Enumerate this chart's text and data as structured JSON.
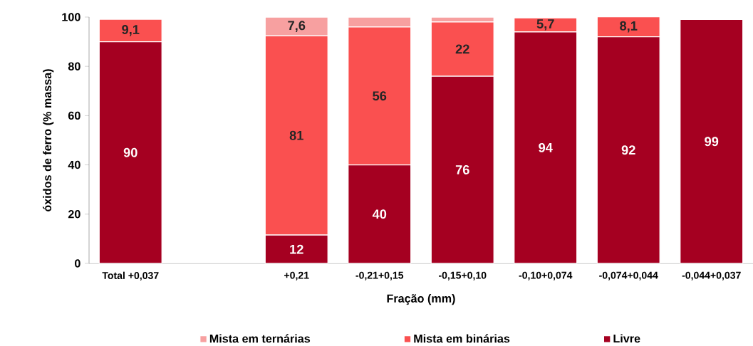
{
  "chart_data": {
    "type": "bar",
    "stacked": true,
    "xlabel": "Fração (mm)",
    "ylabel": "óxidos de ferro (% massa)",
    "categories": [
      "Total +0,037",
      null,
      "+0,21",
      "-0,21+0,15",
      "-0,15+0,10",
      "-0,10+0,074",
      "-0,074+0,044",
      "-0,044+0,037"
    ],
    "series": [
      {
        "name": "Livre",
        "color": "#a50021",
        "values": [
          90,
          null,
          11.5,
          40,
          76,
          94,
          92,
          99
        ],
        "value_labels": [
          "90",
          null,
          "12",
          "40",
          "76",
          "94",
          "92",
          "99"
        ]
      },
      {
        "name": "Mista em binárias",
        "color": "#fa5050",
        "values": [
          9.1,
          null,
          80.9,
          56,
          22,
          5.7,
          8.1,
          0
        ],
        "value_labels": [
          "9,1",
          null,
          "81",
          "56",
          "22",
          "5,7",
          "8,1",
          null
        ]
      },
      {
        "name": "Mista em ternárias",
        "color": "#f7a0a0",
        "values": [
          0,
          null,
          7.6,
          4,
          2,
          0,
          0,
          0
        ],
        "value_labels": [
          null,
          null,
          "7,6",
          null,
          null,
          null,
          null,
          null
        ]
      }
    ],
    "ylim": [
      0,
      100
    ],
    "yticks": [
      0,
      20,
      40,
      60,
      80,
      100
    ],
    "legend": "bottom"
  }
}
